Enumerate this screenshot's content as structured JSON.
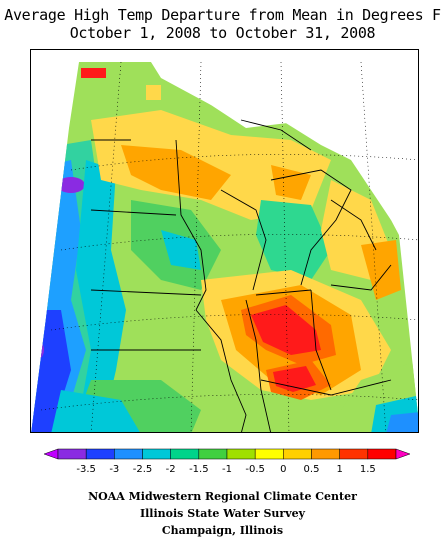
{
  "title": {
    "line1": "Average High Temp Departure from Mean in Degrees F",
    "line2": "October 1, 2008 to October 31, 2008"
  },
  "legend": {
    "labels": [
      "-3.5",
      "-3",
      "-2.5",
      "-2",
      "-1.5",
      "-1",
      "-0.5",
      "0",
      "0.5",
      "1",
      "1.5"
    ],
    "colors": [
      "#c000ff",
      "#8a2be2",
      "#1e40ff",
      "#1e90ff",
      "#00c8d8",
      "#00d48a",
      "#40d040",
      "#a0e000",
      "#ffff00",
      "#ffd000",
      "#ff9900",
      "#ff3300",
      "#ff0000",
      "#ff00c0"
    ]
  },
  "credits": {
    "line1": "NOAA Midwestern Regional Climate Center",
    "line2": "Illinois State Water Survey",
    "line3": "Champaign, Illinois"
  }
}
